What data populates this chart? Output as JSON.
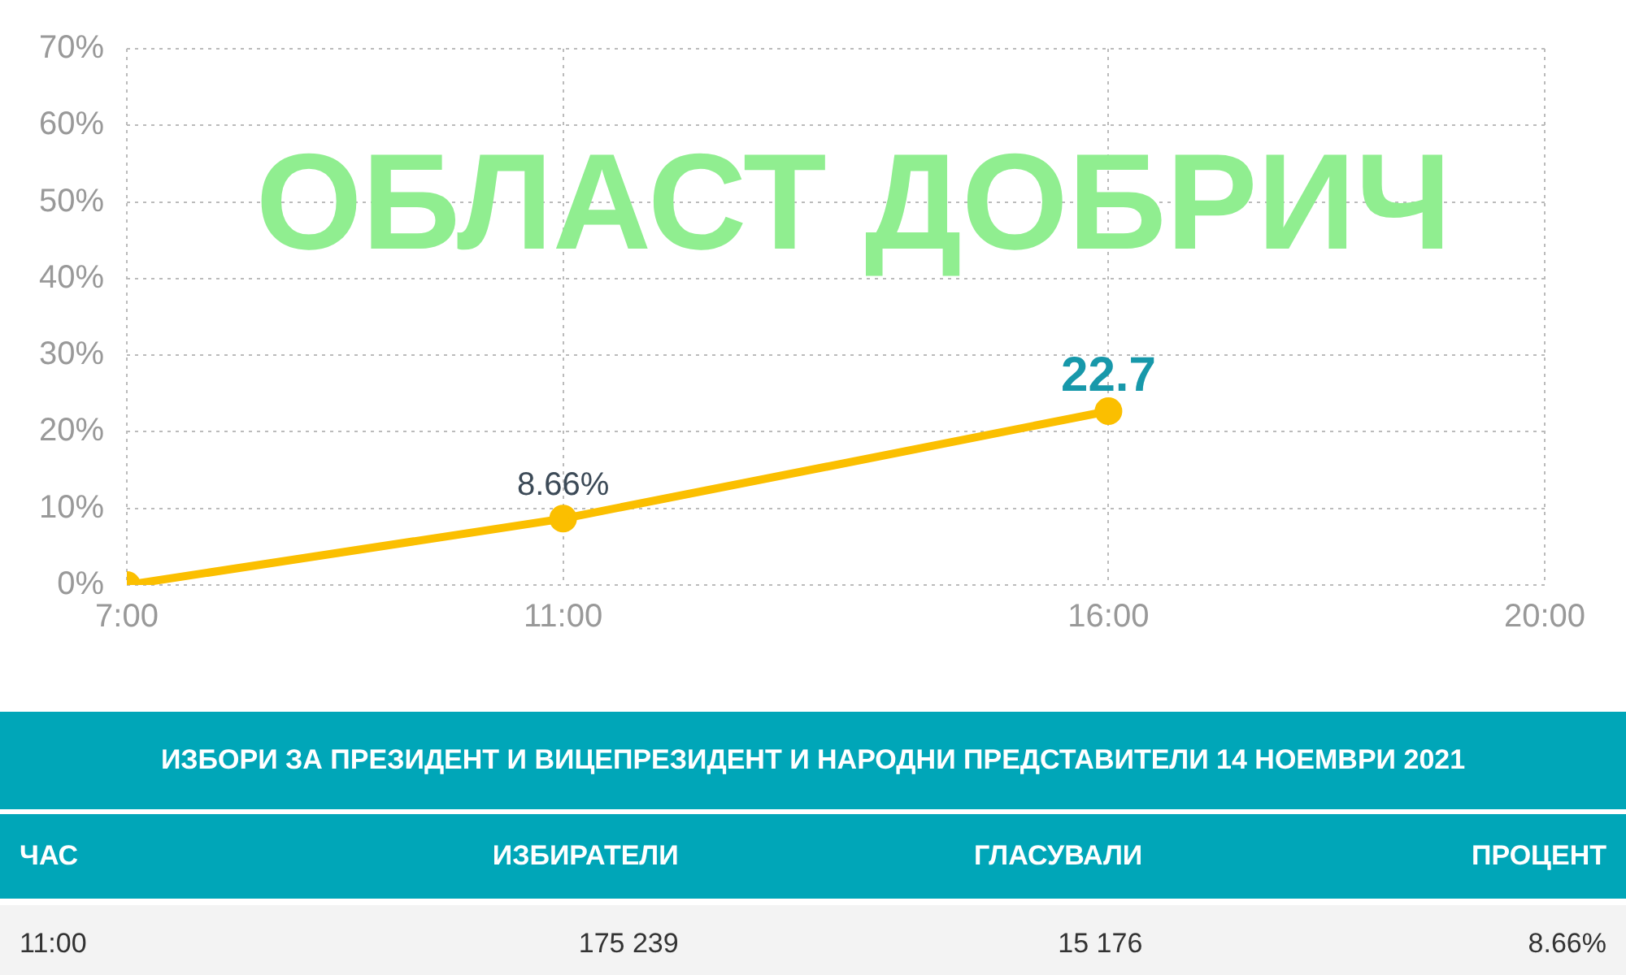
{
  "chart_data": {
    "type": "line",
    "title": "ОБЛАСТ ДОБРИЧ",
    "x": [
      7,
      11,
      16
    ],
    "series": [
      {
        "color": "#fbbf00",
        "values": [
          0,
          8.66,
          22.7
        ],
        "value_labels": [
          null,
          "8.66%",
          null
        ]
      }
    ],
    "xlim": [
      7,
      20
    ],
    "xticks": [
      {
        "value": 7,
        "label": "7:00"
      },
      {
        "value": 11,
        "label": "11:00"
      },
      {
        "value": 16,
        "label": "16:00"
      },
      {
        "value": 20,
        "label": "20:00"
      }
    ],
    "ylim": [
      0,
      70
    ],
    "yticks": [
      {
        "value": 0,
        "label": "0%"
      },
      {
        "value": 10,
        "label": "10%"
      },
      {
        "value": 20,
        "label": "20%"
      },
      {
        "value": 30,
        "label": "30%"
      },
      {
        "value": 40,
        "label": "40%"
      },
      {
        "value": 50,
        "label": "50%"
      },
      {
        "value": 60,
        "label": "60%"
      },
      {
        "value": 70,
        "label": "70%"
      }
    ],
    "grid": true,
    "legend": false,
    "marker": "circle",
    "line_style": "solid",
    "annotations": [
      {
        "text": "22.7",
        "x": 16,
        "y": 22.7
      },
      "ИЗБОРИ ЗА ПРЕЗИДЕНТ И ВИЦЕПРЕЗИДЕНТ И НАРОДНИ ПРЕДСТАВИТЕЛИ 14 НОЕМВРИ 2021",
      "ЧАС",
      "ИЗБИРАТЕЛИ",
      "ГЛАСУВАЛИ",
      "ПРОЦЕНТ",
      "11:00",
      "175 239",
      "15 176",
      "8.66%"
    ]
  }
}
